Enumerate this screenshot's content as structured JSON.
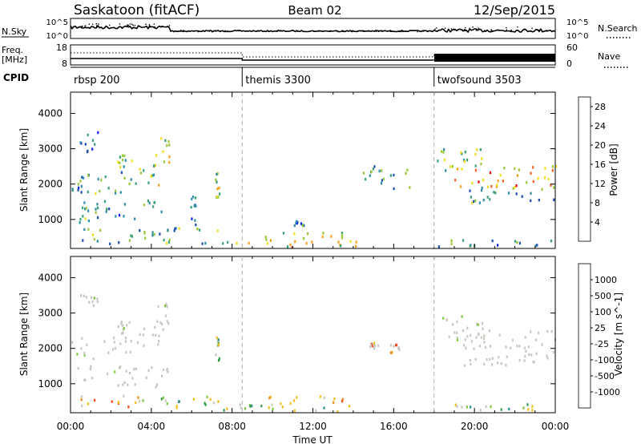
{
  "header": {
    "station": "Saskatoon (fitACF)",
    "beam": "Beam 02",
    "date": "12/Sep/2015"
  },
  "noise_panel": {
    "left_label": "N.Sky",
    "right_label": "N.Search",
    "left_ticks": [
      "10^5",
      "10^0"
    ],
    "right_ticks": [
      "10^5",
      "10^0"
    ]
  },
  "freq_panel": {
    "left_label_top": "Freq.",
    "left_label_bottom": "[MHz]",
    "right_label": "Nave",
    "left_ticks": [
      "18",
      "8"
    ],
    "right_ticks": [
      "60",
      "0"
    ]
  },
  "cpid_panel": {
    "label": "CPID",
    "segments": [
      {
        "name": "rbsp 200",
        "start_h": 0.0
      },
      {
        "name": "themis 3300",
        "start_h": 8.5
      },
      {
        "name": "twofsound 3503",
        "start_h": 18.0
      }
    ]
  },
  "chart_data": [
    {
      "type": "heatmap",
      "title": "",
      "xlabel": "",
      "ylabel": "Slant Range [km]",
      "y_ticks": [
        "1000",
        "2000",
        "3000",
        "4000"
      ],
      "ylim": [
        180,
        4600
      ],
      "xlim_hours": [
        0,
        24
      ],
      "colorbar": {
        "label": "Power [dB]",
        "ticks": [
          "4",
          "8",
          "12",
          "16",
          "20",
          "24",
          "28"
        ],
        "range": [
          0,
          30
        ],
        "colors": [
          "#1020ee",
          "#2050b0",
          "#2f8fa8",
          "#39a070",
          "#9bc83a",
          "#f0dd20",
          "#f5a020",
          "#f06020",
          "#e01010"
        ]
      },
      "echo_regions": [
        {
          "h0": 0.0,
          "h1": 0.8,
          "r0": 1650,
          "r1": 2200,
          "level": 0.3
        },
        {
          "h0": 0.8,
          "h1": 3.0,
          "r0": 1700,
          "r1": 2350,
          "level": 0.35
        },
        {
          "h0": 2.3,
          "h1": 3.0,
          "r0": 2400,
          "r1": 2800,
          "level": 0.5
        },
        {
          "h0": 3.0,
          "h1": 4.6,
          "r0": 1950,
          "r1": 2600,
          "level": 0.55
        },
        {
          "h0": 4.2,
          "h1": 4.9,
          "r0": 2600,
          "r1": 3300,
          "level": 0.5
        },
        {
          "h0": 0.4,
          "h1": 1.4,
          "r0": 2900,
          "r1": 3500,
          "level": 0.25
        },
        {
          "h0": 0.3,
          "h1": 0.9,
          "r0": 900,
          "r1": 1500,
          "level": 0.45
        },
        {
          "h0": 1.2,
          "h1": 4.8,
          "r0": 1000,
          "r1": 1550,
          "level": 0.3
        },
        {
          "h0": 0.5,
          "h1": 7.5,
          "r0": 300,
          "r1": 750,
          "level": 0.4
        },
        {
          "h0": 5.9,
          "h1": 6.2,
          "r0": 600,
          "r1": 1700,
          "level": 0.2
        },
        {
          "h0": 7.15,
          "h1": 7.35,
          "r0": 1600,
          "r1": 2300,
          "level": 0.5
        },
        {
          "h0": 7.5,
          "h1": 14.5,
          "r0": 200,
          "r1": 420,
          "level": 0.6
        },
        {
          "h0": 9.5,
          "h1": 13.5,
          "r0": 350,
          "r1": 650,
          "level": 0.55
        },
        {
          "h0": 10.8,
          "h1": 11.6,
          "r0": 800,
          "r1": 950,
          "level": 0.3
        },
        {
          "h0": 14.3,
          "h1": 16.8,
          "r0": 1850,
          "r1": 2500,
          "level": 0.3
        },
        {
          "h0": 18.1,
          "h1": 20.5,
          "r0": 2200,
          "r1": 3000,
          "level": 0.5
        },
        {
          "h0": 19.0,
          "h1": 24.0,
          "r0": 1900,
          "r1": 2500,
          "level": 0.7
        },
        {
          "h0": 19.5,
          "h1": 24.0,
          "r0": 1450,
          "r1": 1900,
          "level": 0.35
        },
        {
          "h0": 18.0,
          "h1": 24.0,
          "r0": 200,
          "r1": 420,
          "level": 0.3
        }
      ]
    },
    {
      "type": "heatmap",
      "title": "",
      "xlabel": "Time UT",
      "ylabel": "Slant Range [km]",
      "x_ticks": [
        "00:00",
        "04:00",
        "08:00",
        "12:00",
        "16:00",
        "20:00",
        "00:00"
      ],
      "y_ticks": [
        "1000",
        "2000",
        "3000",
        "4000"
      ],
      "ylim": [
        180,
        4600
      ],
      "xlim_hours": [
        0,
        24
      ],
      "colorbar": {
        "label": "Velocity [m s^-1]",
        "ticks": [
          "1000",
          "500",
          "100",
          "25",
          "-25",
          "-100",
          "-500",
          "-1000"
        ],
        "colors": [
          "#1a30b8",
          "#2f8f8f",
          "#3aa050",
          "#80c840",
          "#c8c8c0",
          "#f0c020",
          "#f08a20",
          "#f04a20",
          "#e01010"
        ]
      },
      "echo_regions": [
        {
          "h0": 0.0,
          "h1": 3.0,
          "r0": 1700,
          "r1": 2300,
          "class": "gs"
        },
        {
          "h0": 2.3,
          "h1": 3.0,
          "r0": 2400,
          "r1": 2800,
          "class": "gs"
        },
        {
          "h0": 3.0,
          "h1": 4.6,
          "r0": 1950,
          "r1": 2600,
          "class": "gs"
        },
        {
          "h0": 4.2,
          "h1": 4.9,
          "r0": 2600,
          "r1": 3300,
          "class": "gs"
        },
        {
          "h0": 0.4,
          "h1": 1.4,
          "r0": 2900,
          "r1": 3500,
          "class": "gs"
        },
        {
          "h0": 0.3,
          "h1": 4.8,
          "r0": 900,
          "r1": 1500,
          "class": "gs"
        },
        {
          "h0": 0.5,
          "h1": 3.5,
          "r0": 300,
          "r1": 700,
          "class": "neg"
        },
        {
          "h0": 3.5,
          "h1": 7.5,
          "r0": 300,
          "r1": 650,
          "class": "pos"
        },
        {
          "h0": 7.15,
          "h1": 7.35,
          "r0": 1600,
          "r1": 2300,
          "class": "pos"
        },
        {
          "h0": 7.5,
          "h1": 14.5,
          "r0": 200,
          "r1": 420,
          "class": "pos"
        },
        {
          "h0": 9.5,
          "h1": 13.5,
          "r0": 350,
          "r1": 650,
          "class": "neg"
        },
        {
          "h0": 14.8,
          "h1": 15.2,
          "r0": 1950,
          "r1": 2200,
          "class": "neg"
        },
        {
          "h0": 15.8,
          "h1": 16.3,
          "r0": 1850,
          "r1": 2100,
          "class": "neg"
        },
        {
          "h0": 18.1,
          "h1": 20.5,
          "r0": 2200,
          "r1": 3000,
          "class": "gs"
        },
        {
          "h0": 19.0,
          "h1": 24.0,
          "r0": 1500,
          "r1": 2500,
          "class": "gs"
        },
        {
          "h0": 18.0,
          "h1": 24.0,
          "r0": 200,
          "r1": 420,
          "class": "pos"
        }
      ]
    }
  ]
}
